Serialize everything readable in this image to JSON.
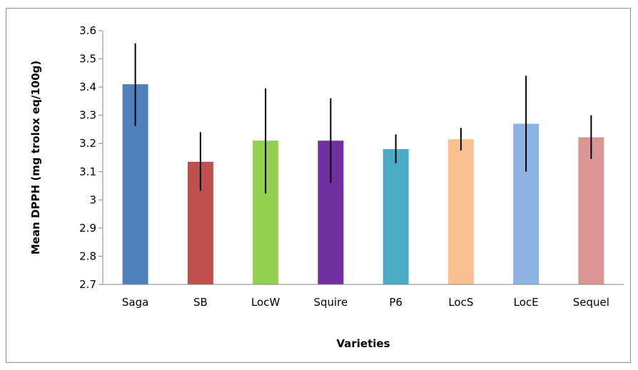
{
  "chart_data": {
    "type": "bar",
    "title": "",
    "xlabel": "Varieties",
    "ylabel": "Mean DPPH (mg trolox eq/100g)",
    "ylim": [
      2.7,
      3.6
    ],
    "yticks": [
      "2.7",
      "2.8",
      "2.9",
      "3",
      "3.1",
      "3.2",
      "3.3",
      "3.4",
      "3.5",
      "3.6"
    ],
    "ytick_values": [
      2.7,
      2.8,
      2.9,
      3.0,
      3.1,
      3.2,
      3.3,
      3.4,
      3.5,
      3.6
    ],
    "grid": false,
    "legend": "none",
    "categories": [
      "Saga",
      "SB",
      "LocW",
      "Squire",
      "P6",
      "LocS",
      "LocE",
      "Sequel"
    ],
    "values": [
      3.41,
      3.135,
      3.21,
      3.21,
      3.18,
      3.215,
      3.27,
      3.222
    ],
    "error_low": [
      3.262,
      3.032,
      3.023,
      3.06,
      3.13,
      3.175,
      3.1,
      3.145
    ],
    "error_high": [
      3.555,
      3.24,
      3.395,
      3.36,
      3.232,
      3.255,
      3.44,
      3.3
    ],
    "colors": [
      "#4f81bd",
      "#c0504d",
      "#92d050",
      "#7030a0",
      "#4bacc6",
      "#fac090",
      "#8db3e2",
      "#d99694"
    ]
  }
}
